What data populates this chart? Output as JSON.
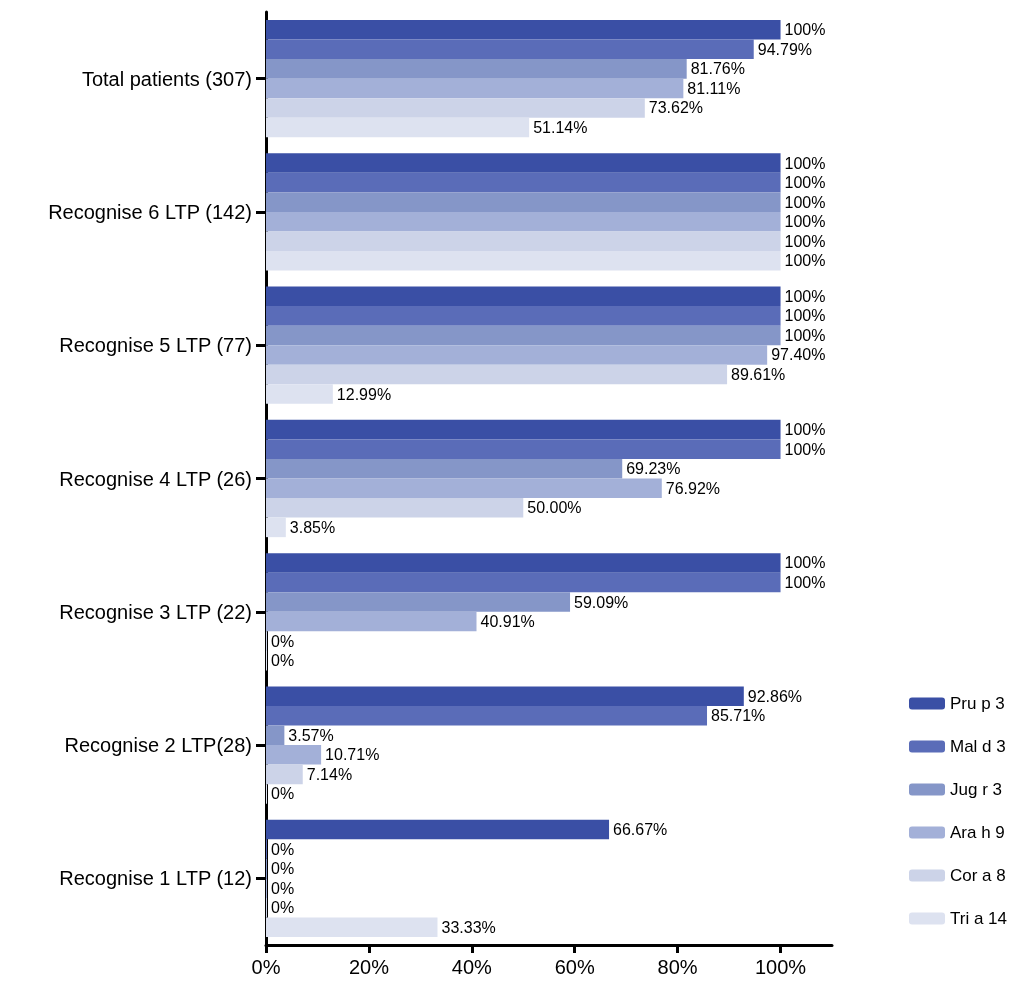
{
  "chart_data": {
    "type": "bar",
    "orientation": "horizontal",
    "categories": [
      "Total patients (307)",
      "Recognise 6 LTP (142)",
      "Recognise 5 LTP (77)",
      "Recognise 4 LTP (26)",
      "Recognise 3 LTP (22)",
      "Recognise 2 LTP(28)",
      "Recognise 1 LTP (12)"
    ],
    "series": [
      {
        "name": "Pru p 3",
        "color": "#3a4fa5",
        "values": [
          100,
          100,
          100,
          100,
          100,
          92.86,
          66.67
        ],
        "value_labels": [
          "100%",
          "100%",
          "100%",
          "100%",
          "100%",
          "92.86%",
          "66.67%"
        ]
      },
      {
        "name": "Mal d 3",
        "color": "#5a6cb8",
        "values": [
          94.79,
          100,
          100,
          100,
          100,
          85.71,
          0
        ],
        "value_labels": [
          "94.79%",
          "100%",
          "100%",
          "100%",
          "100%",
          "85.71%",
          "0%"
        ]
      },
      {
        "name": "Jug r 3",
        "color": "#8596c8",
        "values": [
          81.76,
          100,
          100,
          69.23,
          59.09,
          3.57,
          0
        ],
        "value_labels": [
          "81.76%",
          "100%",
          "100%",
          "69.23%",
          "59.09%",
          "3.57%",
          "0%"
        ]
      },
      {
        "name": "Ara h 9",
        "color": "#a3b0d8",
        "values": [
          81.11,
          100,
          97.4,
          76.92,
          40.91,
          10.71,
          0
        ],
        "value_labels": [
          "81.11%",
          "100%",
          "97.40%",
          "76.92%",
          "40.91%",
          "10.71%",
          "0%"
        ]
      },
      {
        "name": "Cor a 8",
        "color": "#ccd3e8",
        "values": [
          73.62,
          100,
          89.61,
          50.0,
          0,
          7.14,
          0
        ],
        "value_labels": [
          "73.62%",
          "100%",
          "89.61%",
          "50.00%",
          "0%",
          "7.14%",
          "0%"
        ]
      },
      {
        "name": "Tri a 14",
        "color": "#dde2f0",
        "values": [
          51.14,
          100,
          12.99,
          3.85,
          0,
          0,
          33.33
        ],
        "value_labels": [
          "51.14%",
          "100%",
          "12.99%",
          "3.85%",
          "0%",
          "0%",
          "33.33%"
        ]
      }
    ],
    "xlim": [
      0,
      110
    ],
    "xticks": [
      {
        "value": 0,
        "label": "0%"
      },
      {
        "value": 20,
        "label": "20%"
      },
      {
        "value": 40,
        "label": "40%"
      },
      {
        "value": 60,
        "label": "60%"
      },
      {
        "value": 80,
        "label": "80%"
      },
      {
        "value": 100,
        "label": "100%"
      }
    ],
    "grid": false,
    "legend": "right"
  }
}
